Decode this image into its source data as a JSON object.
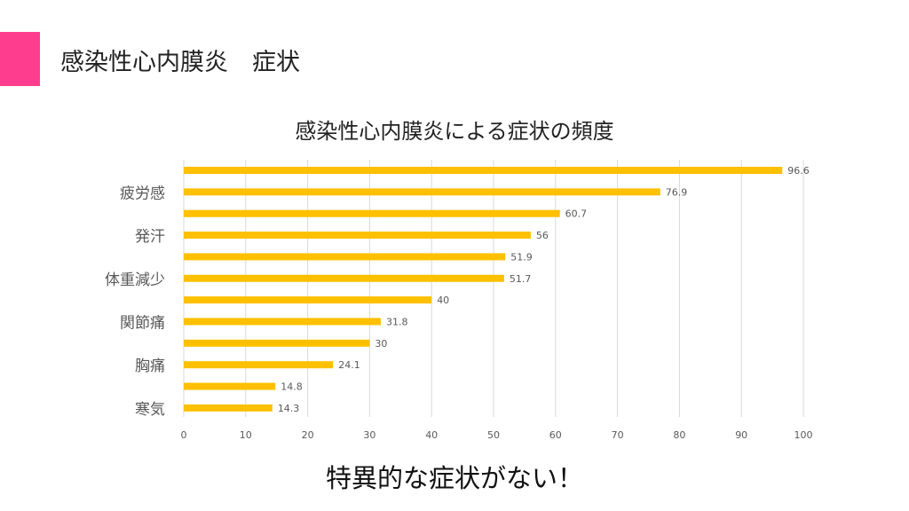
{
  "slide": {
    "title": "感染性心内膜炎　症状",
    "accent_color": "#ff3d8e",
    "footer": "特異的な症状がない！"
  },
  "chart_data": {
    "type": "bar",
    "orientation": "horizontal",
    "title": "感染性心内膜炎による症状の頻度",
    "categories": [
      "",
      "疲労感",
      "",
      "発汗",
      "",
      "体重減少",
      "",
      "関節痛",
      "",
      "胸痛",
      "",
      "寒気"
    ],
    "values": [
      96.6,
      76.9,
      60.7,
      56,
      51.9,
      51.7,
      40,
      31.8,
      30,
      24.1,
      14.8,
      14.3
    ],
    "xlim": [
      0,
      100
    ],
    "xticks": [
      0,
      10,
      20,
      30,
      40,
      50,
      60,
      70,
      80,
      90,
      100
    ],
    "xlabel": "",
    "ylabel": "",
    "grid": true,
    "bar_color": "#ffc000"
  }
}
